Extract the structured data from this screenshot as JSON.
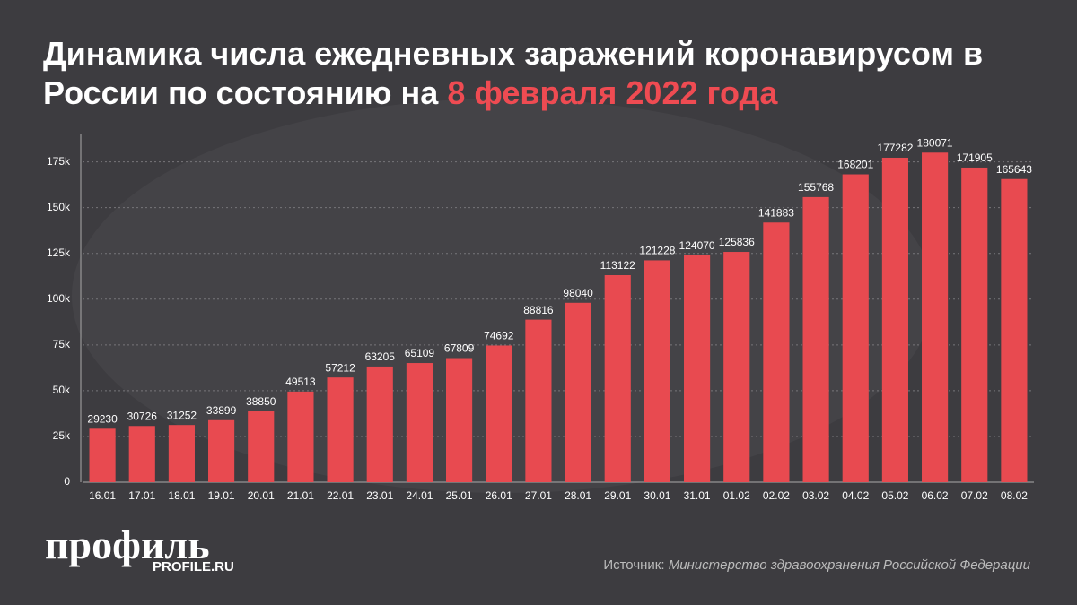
{
  "chart_data": {
    "type": "bar",
    "title": {
      "text": "Динамика числа ежедневных заражений коронавирусом в России по состоянию на",
      "highlight": "8 февраля 2022 года"
    },
    "categories": [
      "16.01",
      "17.01",
      "18.01",
      "19.01",
      "20.01",
      "21.01",
      "22.01",
      "23.01",
      "24.01",
      "25.01",
      "26.01",
      "27.01",
      "28.01",
      "29.01",
      "30.01",
      "31.01",
      "01.02",
      "02.02",
      "03.02",
      "04.02",
      "05.02",
      "06.02",
      "07.02",
      "08.02"
    ],
    "values": [
      29230,
      30726,
      31252,
      33899,
      38850,
      49513,
      57212,
      63205,
      65109,
      67809,
      74692,
      88816,
      98040,
      113122,
      121228,
      124070,
      125836,
      141883,
      155768,
      168201,
      177282,
      180071,
      171905,
      165643
    ],
    "color": "#e84a50",
    "ylim": [
      0,
      190000
    ],
    "yticks": [
      0,
      {
        "value": 25000,
        "label": "25k"
      },
      {
        "value": 50000,
        "label": "50k"
      },
      {
        "value": 75000,
        "label": "75k"
      },
      {
        "value": 100000,
        "label": "100k"
      },
      {
        "value": 125000,
        "label": "125k"
      },
      {
        "value": 150000,
        "label": "150k"
      },
      {
        "value": 175000,
        "label": "175k"
      }
    ],
    "grid": true,
    "source": {
      "label": "Источник:",
      "text": "Министерство здравоохранения Российской Федерации"
    },
    "logo": {
      "name": "профиль",
      "site": "PROFILE.RU"
    }
  }
}
